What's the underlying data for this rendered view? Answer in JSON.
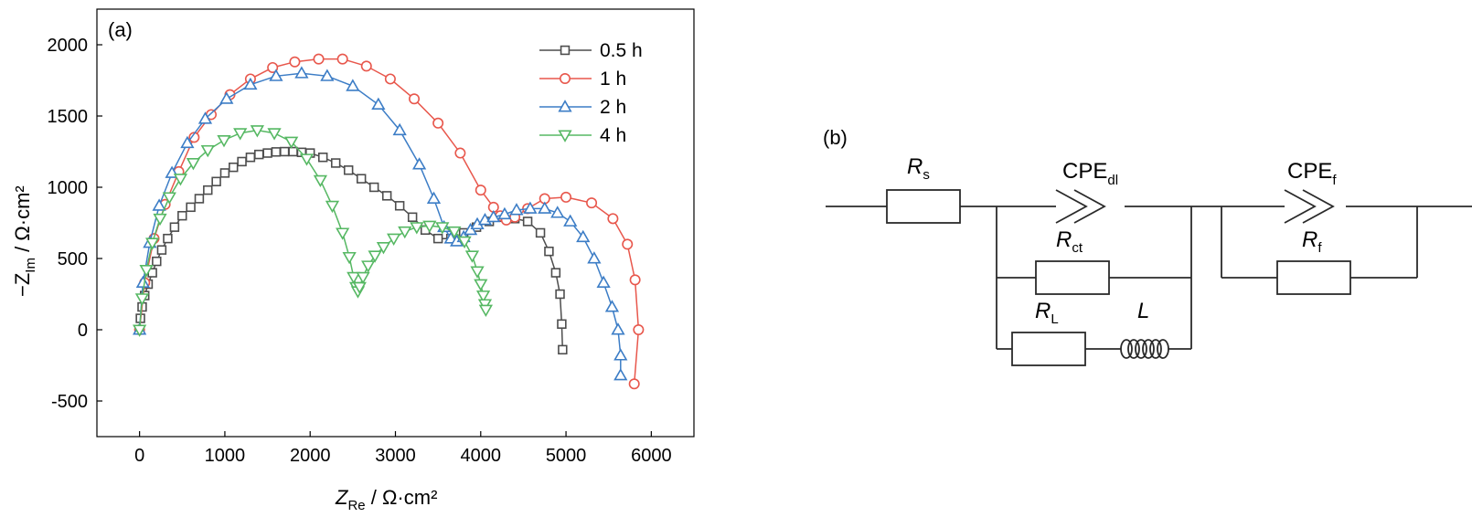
{
  "chart_data": {
    "type": "scatter",
    "panel_label": "(a)",
    "xlabel": {
      "main": "Z",
      "sub": "Re",
      "unit": " / Ω·cm²"
    },
    "ylabel": {
      "prefix": "−Z",
      "sub": "Im",
      "unit": " / Ω·cm²"
    },
    "xlim": [
      -500,
      6500
    ],
    "ylim": [
      -750,
      2250
    ],
    "xticks": [
      "0",
      "1000",
      "2000",
      "3000",
      "4000",
      "5000",
      "6000"
    ],
    "xtick_values": [
      0,
      1000,
      2000,
      3000,
      4000,
      5000,
      6000
    ],
    "yticks": [
      "-500",
      "0",
      "500",
      "1000",
      "1500",
      "2000"
    ],
    "ytick_values": [
      -500,
      0,
      500,
      1000,
      1500,
      2000
    ],
    "grid": false,
    "legend_position": "top-right",
    "series": [
      {
        "name": "0.5 h",
        "color": "#4d4d4d",
        "marker": "square",
        "x": [
          0,
          10,
          30,
          60,
          100,
          150,
          200,
          260,
          330,
          410,
          500,
          600,
          700,
          800,
          900,
          1000,
          1100,
          1200,
          1300,
          1400,
          1500,
          1600,
          1700,
          1800,
          1900,
          2000,
          2150,
          2300,
          2450,
          2600,
          2750,
          2900,
          3050,
          3200,
          3350,
          3500,
          3650,
          3800,
          3950,
          4100,
          4250,
          4400,
          4550,
          4700,
          4800,
          4880,
          4930,
          4950,
          4960
        ],
        "y": [
          0,
          80,
          160,
          240,
          320,
          400,
          480,
          560,
          640,
          720,
          800,
          860,
          920,
          980,
          1040,
          1100,
          1140,
          1180,
          1210,
          1230,
          1240,
          1248,
          1250,
          1250,
          1245,
          1240,
          1210,
          1170,
          1120,
          1060,
          1000,
          940,
          870,
          790,
          700,
          640,
          640,
          680,
          720,
          760,
          790,
          780,
          760,
          680,
          550,
          400,
          250,
          40,
          -140
        ]
      },
      {
        "name": "1 h",
        "color": "#e8574c",
        "marker": "circle",
        "x": [
          0,
          60,
          170,
          300,
          460,
          640,
          840,
          1060,
          1300,
          1560,
          1820,
          2100,
          2380,
          2660,
          2940,
          3220,
          3500,
          3760,
          4000,
          4150,
          4230,
          4300,
          4400,
          4550,
          4750,
          5000,
          5300,
          5550,
          5720,
          5810,
          5850,
          5800
        ],
        "y": [
          0,
          330,
          640,
          880,
          1110,
          1350,
          1510,
          1650,
          1760,
          1840,
          1880,
          1900,
          1900,
          1850,
          1760,
          1620,
          1450,
          1240,
          980,
          860,
          800,
          770,
          790,
          850,
          920,
          930,
          890,
          780,
          600,
          350,
          0,
          -380
        ]
      },
      {
        "name": "2 h",
        "color": "#3c7dc6",
        "marker": "triangle-up",
        "x": [
          0,
          40,
          120,
          230,
          380,
          560,
          770,
          1020,
          1300,
          1600,
          1900,
          2200,
          2500,
          2800,
          3050,
          3280,
          3450,
          3570,
          3650,
          3720,
          3800,
          3880,
          3960,
          4050,
          4150,
          4280,
          4420,
          4580,
          4750,
          4900,
          5050,
          5200,
          5330,
          5440,
          5540,
          5610,
          5640,
          5640
        ],
        "y": [
          0,
          330,
          610,
          870,
          1100,
          1310,
          1480,
          1620,
          1720,
          1780,
          1800,
          1780,
          1710,
          1580,
          1400,
          1160,
          920,
          720,
          640,
          620,
          650,
          700,
          740,
          770,
          790,
          810,
          840,
          850,
          850,
          820,
          760,
          650,
          500,
          330,
          160,
          0,
          -180,
          -320
        ]
      },
      {
        "name": "4 h",
        "color": "#56b863",
        "marker": "triangle-down",
        "x": [
          0,
          30,
          80,
          150,
          240,
          350,
          480,
          630,
          800,
          990,
          1180,
          1380,
          1580,
          1780,
          1960,
          2120,
          2260,
          2380,
          2460,
          2510,
          2540,
          2560,
          2580,
          2620,
          2680,
          2760,
          2860,
          2980,
          3110,
          3250,
          3400,
          3550,
          3690,
          3810,
          3900,
          3960,
          4000,
          4030,
          4050,
          4060
        ],
        "y": [
          0,
          220,
          420,
          610,
          780,
          930,
          1060,
          1170,
          1260,
          1330,
          1380,
          1400,
          1380,
          1320,
          1200,
          1050,
          870,
          680,
          510,
          370,
          300,
          270,
          300,
          370,
          450,
          520,
          580,
          640,
          690,
          720,
          730,
          720,
          690,
          620,
          520,
          410,
          320,
          240,
          180,
          140
        ]
      }
    ]
  },
  "circuit": {
    "panel_label": "(b)",
    "rs": {
      "main": "R",
      "sub": "s"
    },
    "cpe_dl": {
      "main": "CPE",
      "sub": "dl"
    },
    "cpe_f": {
      "main": "CPE",
      "sub": "f"
    },
    "rct": {
      "main": "R",
      "sub": "ct"
    },
    "rf": {
      "main": "R",
      "sub": "f"
    },
    "rl": {
      "main": "R",
      "sub": "L"
    },
    "l": {
      "main": "L"
    }
  }
}
